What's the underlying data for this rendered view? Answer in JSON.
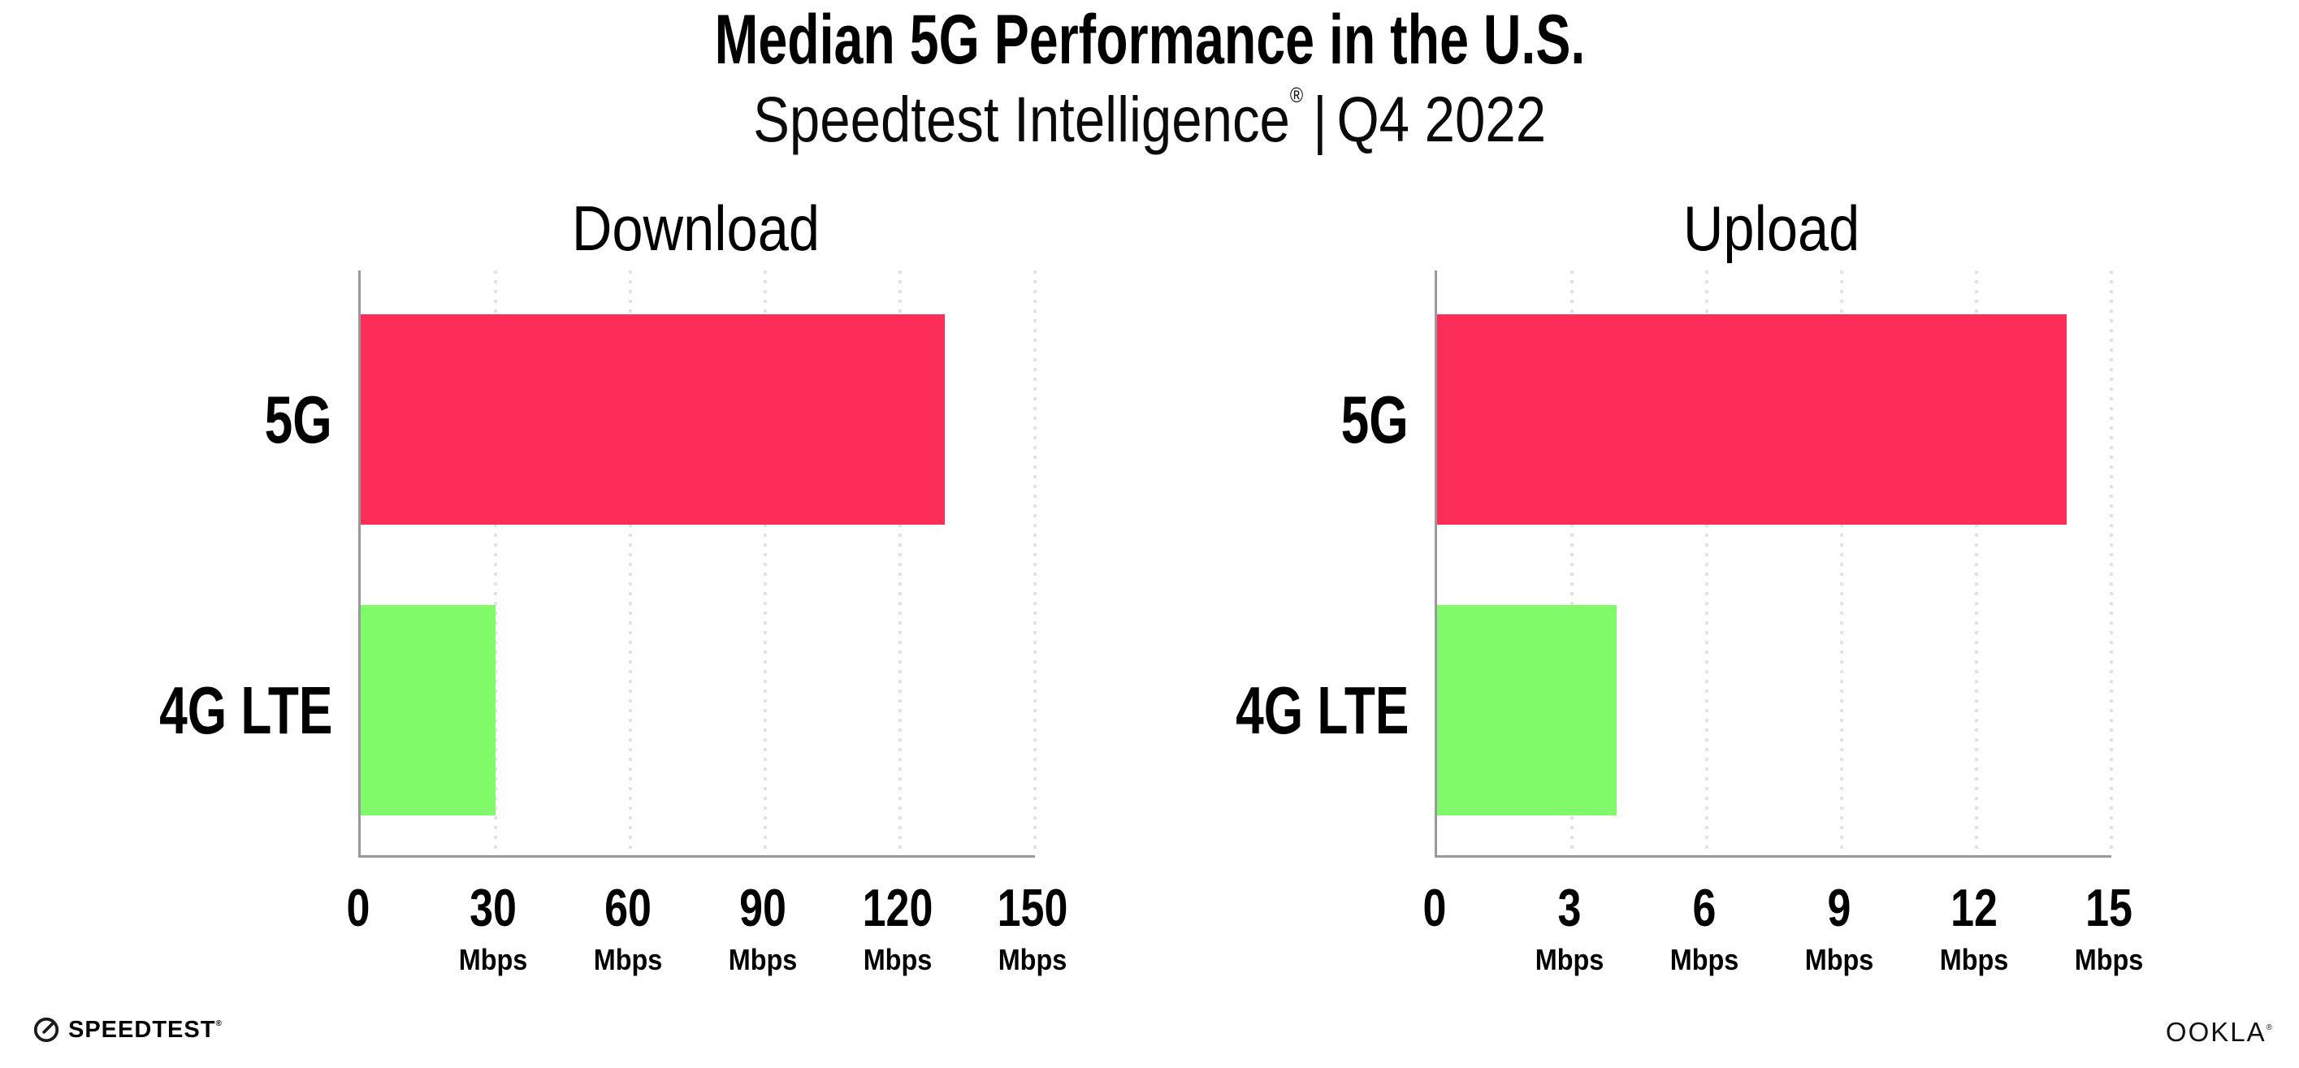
{
  "header": {
    "title": "Median 5G Performance in the U.S.",
    "subtitle": {
      "brand": "Speedtest Intelligence",
      "registered_mark": "®",
      "separator": "|",
      "period": "Q4 2022"
    }
  },
  "chart_data": [
    {
      "type": "bar",
      "orientation": "horizontal",
      "title": "Download",
      "categories": [
        "5G",
        "4G LTE"
      ],
      "values": [
        130,
        30
      ],
      "unit": "Mbps",
      "xlabel": "",
      "ylabel": "",
      "xlim": [
        0,
        150
      ],
      "xticks": [
        0,
        30,
        60,
        90,
        120,
        150
      ],
      "bar_colors": [
        "#FC2D57",
        "#80FA68"
      ],
      "grid": "vertical-dotted",
      "legend": "none"
    },
    {
      "type": "bar",
      "orientation": "horizontal",
      "title": "Upload",
      "categories": [
        "5G",
        "4G LTE"
      ],
      "values": [
        14,
        4
      ],
      "unit": "Mbps",
      "xlabel": "",
      "ylabel": "",
      "xlim": [
        0,
        15
      ],
      "xticks": [
        0,
        3,
        6,
        9,
        12,
        15
      ],
      "bar_colors": [
        "#FC2D57",
        "#80FA68"
      ],
      "grid": "vertical-dotted",
      "legend": "none"
    }
  ],
  "footer": {
    "speedtest_label": "SPEEDTEST",
    "speedtest_mark": "®",
    "ookla_label": "OOKLA",
    "ookla_mark": "®"
  },
  "colors": {
    "bar_5g": "#FC2D57",
    "bar_4g_lte": "#80FA68",
    "axis": "#98989d",
    "gridline": "#E0E1EB",
    "text": "#000000",
    "background": "#FFFFFF"
  }
}
